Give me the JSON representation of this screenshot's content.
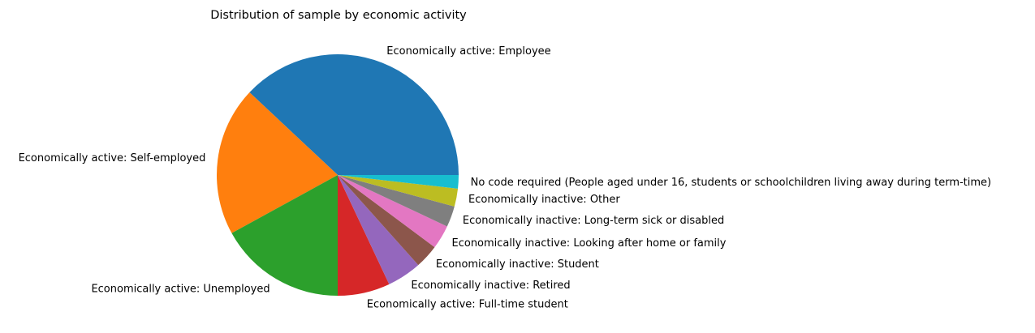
{
  "chart_data": {
    "type": "pie",
    "title": "Distribution of sample by economic activity",
    "start_angle_deg": 0,
    "direction": "counterclockwise",
    "slices": [
      {
        "label": "Economically active: Employee",
        "value": 38.0,
        "color": "#1f77b4"
      },
      {
        "label": "Economically active: Self-employed",
        "value": 20.0,
        "color": "#ff7f0e"
      },
      {
        "label": "Economically active: Unemployed",
        "value": 17.0,
        "color": "#2ca02c"
      },
      {
        "label": "Economically active: Full-time student",
        "value": 7.0,
        "color": "#d62728"
      },
      {
        "label": "Economically inactive: Retired",
        "value": 4.6,
        "color": "#9467bd"
      },
      {
        "label": "Economically inactive: Student",
        "value": 3.2,
        "color": "#8c564b"
      },
      {
        "label": "Economically inactive: Looking after home or family",
        "value": 3.2,
        "color": "#e377c2"
      },
      {
        "label": "Economically inactive: Long-term sick or disabled",
        "value": 2.8,
        "color": "#7f7f7f"
      },
      {
        "label": "Economically inactive: Other",
        "value": 2.4,
        "color": "#bcbd22"
      },
      {
        "label": "No code required (People aged under 16, students or schoolchildren living away during term-time)",
        "value": 1.8,
        "color": "#17becf"
      }
    ]
  }
}
